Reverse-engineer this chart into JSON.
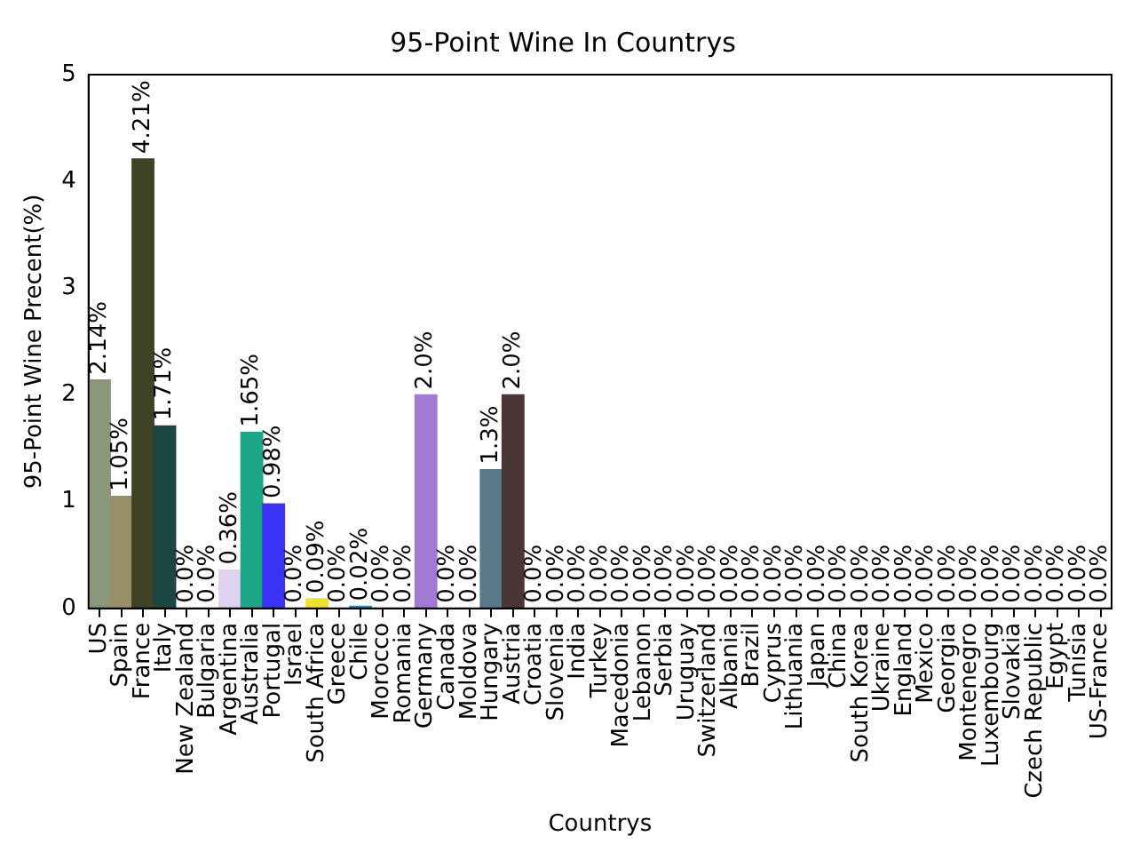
{
  "chart_data": {
    "type": "bar",
    "title": "95-Point Wine In Countrys",
    "xlabel": "Countrys",
    "ylabel": "95-Point Wine Precent(%)",
    "categories": [
      "US",
      "Spain",
      "France",
      "Italy",
      "New Zealand",
      "Bulgaria",
      "Argentina",
      "Australia",
      "Portugal",
      "Israel",
      "South Africa",
      "Greece",
      "Chile",
      "Morocco",
      "Romania",
      "Germany",
      "Canada",
      "Moldova",
      "Hungary",
      "Austria",
      "Croatia",
      "Slovenia",
      "India",
      "Turkey",
      "Macedonia",
      "Lebanon",
      "Serbia",
      "Uruguay",
      "Switzerland",
      "Albania",
      "Brazil",
      "Cyprus",
      "Lithuania",
      "Japan",
      "China",
      "South Korea",
      "Ukraine",
      "England",
      "Mexico",
      "Georgia",
      "Montenegro",
      "Luxembourg",
      "Slovakia",
      "Czech Republic",
      "Egypt",
      "Tunisia",
      "US-France"
    ],
    "values": [
      2.14,
      1.05,
      4.21,
      1.71,
      0,
      0,
      0.36,
      1.65,
      0.98,
      0,
      0.09,
      0,
      0.02,
      0,
      0,
      2.0,
      0,
      0,
      1.3,
      2.0,
      0,
      0,
      0,
      0,
      0,
      0,
      0,
      0,
      0,
      0,
      0,
      0,
      0,
      0,
      0,
      0,
      0,
      0,
      0,
      0,
      0,
      0,
      0,
      0,
      0,
      0,
      0
    ],
    "value_labels": [
      "2.14%",
      "1.05%",
      "4.21%",
      "1.71%",
      "0.0%",
      "0.0%",
      "0.36%",
      "1.65%",
      "0.98%",
      "0.0%",
      "0.09%",
      "0.0%",
      "0.02%",
      "0.0%",
      "0.0%",
      "2.0%",
      "0.0%",
      "0.0%",
      "1.3%",
      "2.0%",
      "0.0%",
      "0.0%",
      "0.0%",
      "0.0%",
      "0.0%",
      "0.0%",
      "0.0%",
      "0.0%",
      "0.0%",
      "0.0%",
      "0.0%",
      "0.0%",
      "0.0%",
      "0.0%",
      "0.0%",
      "0.0%",
      "0.0%",
      "0.0%",
      "0.0%",
      "0.0%",
      "0.0%",
      "0.0%",
      "0.0%",
      "0.0%",
      "0.0%",
      "0.0%",
      "0.0%"
    ],
    "colors": [
      "#8a977a",
      "#979069",
      "#3f4224",
      "#1c4641",
      "#888888",
      "#888888",
      "#ddd3ef",
      "#1ca888",
      "#3a33f5",
      "#888888",
      "#f0e12e",
      "#888888",
      "#1a8fc0",
      "#888888",
      "#888888",
      "#a07ad4",
      "#888888",
      "#888888",
      "#5a7a8a",
      "#4a3634",
      "#888888",
      "#888888",
      "#888888",
      "#888888",
      "#888888",
      "#888888",
      "#888888",
      "#888888",
      "#888888",
      "#888888",
      "#888888",
      "#888888",
      "#888888",
      "#888888",
      "#888888",
      "#888888",
      "#888888",
      "#888888",
      "#888888",
      "#888888",
      "#888888",
      "#888888",
      "#888888",
      "#888888",
      "#888888",
      "#888888",
      "#888888"
    ],
    "ylim": [
      0,
      5
    ],
    "yticks": [
      0,
      1,
      2,
      3,
      4,
      5
    ],
    "grid": false,
    "legend": false
  }
}
